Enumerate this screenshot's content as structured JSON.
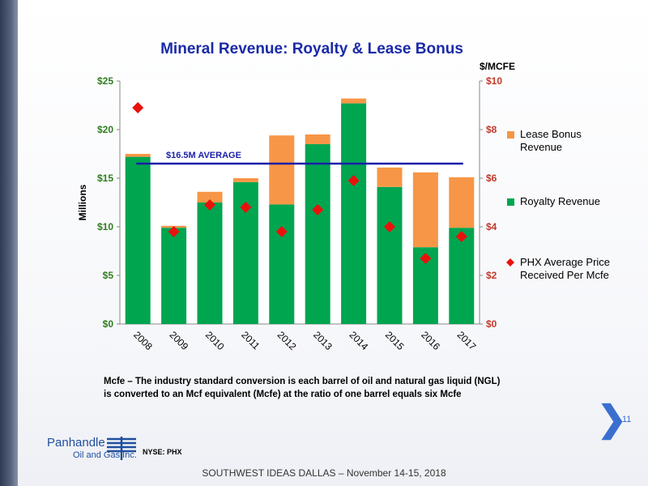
{
  "title": "Mineral Revenue: Royalty & Lease Bonus",
  "note": {
    "line1": "Mcfe – The industry standard conversion is each barrel of oil and natural gas liquid (NGL)",
    "line2": "is converted to an Mcf equivalent (Mcfe) at the ratio of one barrel equals six Mcfe"
  },
  "page_number": "11",
  "logo": {
    "name": "Panhandle",
    "sub": "Oil and Gas Inc.",
    "ticker": "NYSE: PHX"
  },
  "footer": "SOUTHWEST IDEAS DALLAS – November 14-15, 2018",
  "chart_data": {
    "type": "bar",
    "stacked": true,
    "categories": [
      "2008",
      "2009",
      "2010",
      "2011",
      "2012",
      "2013",
      "2014",
      "2015",
      "2016",
      "2017"
    ],
    "series": [
      {
        "name": "Royalty Revenue",
        "color": "#00a550",
        "axis": "left",
        "values": [
          17.2,
          9.9,
          12.5,
          14.6,
          12.3,
          18.5,
          22.7,
          14.1,
          7.9,
          9.9
        ]
      },
      {
        "name": "Lease Bonus Revenue",
        "color": "#f79646",
        "axis": "left",
        "values": [
          0.3,
          0.2,
          1.1,
          0.4,
          7.1,
          1.0,
          0.5,
          2.0,
          7.7,
          5.2
        ]
      },
      {
        "name": "PHX Average Price Received Per Mcfe",
        "color": "#e8120c",
        "axis": "right",
        "marker": "diamond",
        "values": [
          8.9,
          3.8,
          4.9,
          4.8,
          3.8,
          4.7,
          5.9,
          4.0,
          2.7,
          3.6
        ]
      }
    ],
    "average_line": {
      "label": "$16.5M AVERAGE",
      "value": 16.5,
      "color": "#1a1fa8"
    },
    "ylabel": "Millions",
    "y2label": "$/MCFE",
    "ylim": [
      0,
      25
    ],
    "y2lim": [
      0,
      10
    ],
    "yticks": [
      "$0",
      "$5",
      "$10",
      "$15",
      "$20",
      "$25"
    ],
    "y2ticks": [
      "$0",
      "$2",
      "$4",
      "$6",
      "$8",
      "$10"
    ],
    "legend": [
      "Lease Bonus\nRevenue",
      "Royalty Revenue",
      "PHX Average Price\nReceived Per Mcfe"
    ],
    "legend_position": "right",
    "axis_label_color": "#2e7d1e",
    "axis2_label_color": "#c0392b"
  }
}
